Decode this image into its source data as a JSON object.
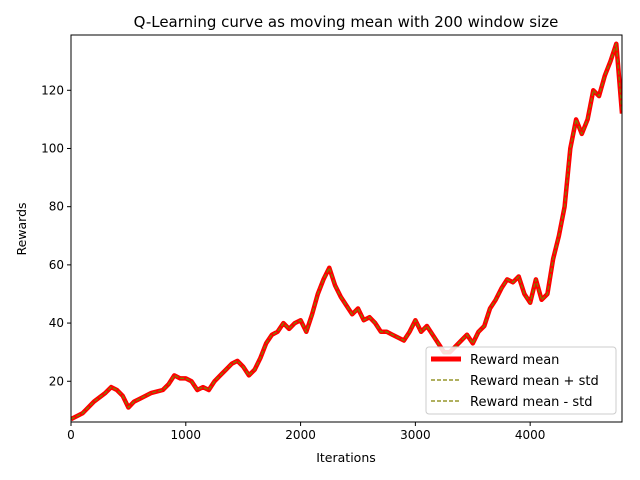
{
  "chart_data": {
    "type": "line",
    "title": "Q-Learning curve as moving mean with 200 window size",
    "xlabel": "Iterations",
    "ylabel": "Rewards",
    "xlim": [
      0,
      4800
    ],
    "ylim": [
      6,
      139
    ],
    "xticks": [
      0,
      1000,
      2000,
      3000,
      4000
    ],
    "yticks": [
      20,
      40,
      60,
      80,
      100,
      120
    ],
    "grid": false,
    "legend": "lower-right",
    "series": [
      {
        "name": "Reward mean",
        "color": "#ff0000",
        "style": "solid-thick",
        "x": [
          0,
          100,
          200,
          300,
          350,
          400,
          450,
          500,
          550,
          600,
          700,
          800,
          850,
          900,
          950,
          1000,
          1050,
          1100,
          1150,
          1200,
          1250,
          1300,
          1350,
          1400,
          1450,
          1500,
          1550,
          1600,
          1650,
          1700,
          1750,
          1800,
          1850,
          1900,
          1950,
          2000,
          2050,
          2100,
          2150,
          2200,
          2250,
          2300,
          2350,
          2400,
          2450,
          2500,
          2550,
          2600,
          2650,
          2700,
          2750,
          2800,
          2850,
          2900,
          2950,
          3000,
          3050,
          3100,
          3150,
          3200,
          3250,
          3300,
          3350,
          3400,
          3450,
          3500,
          3550,
          3600,
          3650,
          3700,
          3750,
          3800,
          3850,
          3900,
          3950,
          4000,
          4050,
          4100,
          4150,
          4200,
          4250,
          4300,
          4350,
          4400,
          4450,
          4500,
          4550,
          4600,
          4650,
          4700,
          4750,
          4800
        ],
        "y": [
          7,
          9,
          13,
          16,
          18,
          17,
          15,
          11,
          13,
          14,
          16,
          17,
          19,
          22,
          21,
          21,
          20,
          17,
          18,
          17,
          20,
          22,
          24,
          26,
          27,
          25,
          22,
          24,
          28,
          33,
          36,
          37,
          40,
          38,
          40,
          41,
          37,
          43,
          50,
          55,
          59,
          53,
          49,
          46,
          43,
          45,
          41,
          42,
          40,
          37,
          37,
          36,
          35,
          34,
          37,
          41,
          37,
          39,
          36,
          33,
          30,
          30,
          32,
          34,
          36,
          33,
          37,
          39,
          45,
          48,
          52,
          55,
          54,
          56,
          50,
          47,
          55,
          48,
          50,
          62,
          70,
          80,
          100,
          110,
          105,
          110,
          120,
          118,
          125,
          130,
          136,
          112
        ]
      },
      {
        "name": "Reward mean + std",
        "color": "#808000",
        "style": "dashed",
        "x": [
          0,
          100,
          200,
          300,
          350,
          400,
          450,
          500,
          550,
          600,
          700,
          800,
          850,
          900,
          950,
          1000,
          1050,
          1100,
          1150,
          1200,
          1250,
          1300,
          1350,
          1400,
          1450,
          1500,
          1550,
          1600,
          1650,
          1700,
          1750,
          1800,
          1850,
          1900,
          1950,
          2000,
          2050,
          2100,
          2150,
          2200,
          2250,
          2300,
          2350,
          2400,
          2450,
          2500,
          2550,
          2600,
          2650,
          2700,
          2750,
          2800,
          2850,
          2900,
          2950,
          3000,
          3050,
          3100,
          3150,
          3200,
          3250,
          3300,
          3350,
          3400,
          3450,
          3500,
          3550,
          3600,
          3650,
          3700,
          3750,
          3800,
          3850,
          3900,
          3950,
          4000,
          4050,
          4100,
          4150,
          4200,
          4250,
          4300,
          4350,
          4400,
          4450,
          4500,
          4550,
          4600,
          4650,
          4700,
          4750,
          4800
        ],
        "y": [
          7,
          9,
          13,
          16,
          18,
          17,
          15,
          11,
          13,
          14,
          16,
          17,
          19,
          22,
          21,
          21,
          20,
          17,
          18,
          17,
          20,
          22,
          24,
          26,
          27,
          25,
          22,
          24,
          28,
          33,
          36,
          37,
          40,
          38,
          40,
          41,
          37,
          43,
          50,
          55,
          59,
          53,
          49,
          46,
          43,
          45,
          41,
          42,
          40,
          37,
          37,
          36,
          35,
          34,
          37,
          41,
          37,
          39,
          36,
          33,
          30,
          30,
          32,
          34,
          36,
          33,
          37,
          39,
          45,
          48,
          52,
          55,
          54,
          56,
          50,
          47,
          55,
          48,
          50,
          62,
          70,
          80,
          100,
          110,
          105,
          110,
          120,
          118,
          125,
          130,
          136,
          112
        ]
      },
      {
        "name": "Reward mean - std",
        "color": "#808000",
        "style": "dashed",
        "x": [
          0,
          100,
          200,
          300,
          350,
          400,
          450,
          500,
          550,
          600,
          700,
          800,
          850,
          900,
          950,
          1000,
          1050,
          1100,
          1150,
          1200,
          1250,
          1300,
          1350,
          1400,
          1450,
          1500,
          1550,
          1600,
          1650,
          1700,
          1750,
          1800,
          1850,
          1900,
          1950,
          2000,
          2050,
          2100,
          2150,
          2200,
          2250,
          2300,
          2350,
          2400,
          2450,
          2500,
          2550,
          2600,
          2650,
          2700,
          2750,
          2800,
          2850,
          2900,
          2950,
          3000,
          3050,
          3100,
          3150,
          3200,
          3250,
          3300,
          3350,
          3400,
          3450,
          3500,
          3550,
          3600,
          3650,
          3700,
          3750,
          3800,
          3850,
          3900,
          3950,
          4000,
          4050,
          4100,
          4150,
          4200,
          4250,
          4300,
          4350,
          4400,
          4450,
          4500,
          4550,
          4600,
          4650,
          4700,
          4750,
          4800
        ],
        "y": [
          7,
          9,
          13,
          16,
          18,
          17,
          15,
          11,
          13,
          14,
          16,
          17,
          19,
          22,
          21,
          21,
          20,
          17,
          18,
          17,
          20,
          22,
          24,
          26,
          27,
          25,
          22,
          24,
          28,
          33,
          36,
          37,
          40,
          38,
          40,
          41,
          37,
          43,
          50,
          55,
          59,
          53,
          49,
          46,
          43,
          45,
          41,
          42,
          40,
          37,
          37,
          36,
          35,
          34,
          37,
          41,
          37,
          39,
          36,
          33,
          30,
          30,
          32,
          34,
          36,
          33,
          37,
          39,
          45,
          48,
          52,
          55,
          54,
          56,
          50,
          47,
          55,
          48,
          50,
          62,
          70,
          80,
          100,
          110,
          105,
          110,
          120,
          118,
          125,
          130,
          136,
          112
        ]
      }
    ]
  }
}
